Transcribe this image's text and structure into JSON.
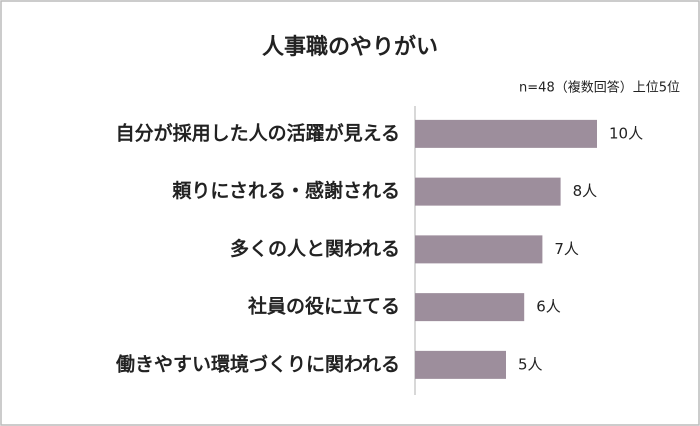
{
  "chart_data": {
    "type": "barh",
    "title": "人事職のやりがい",
    "subtitle": "n=48（複数回答）上位5位",
    "categories": [
      "自分が採用した人の活躍が見える",
      "頼りにされる・感謝される",
      "多くの人と関われる",
      "社員の役に立てる",
      "働きやすい環境づくりに関われる"
    ],
    "values": [
      10,
      8,
      7,
      6,
      5
    ],
    "value_labels": [
      "10人",
      "8人",
      "7人",
      "6人",
      "5人"
    ],
    "color": "#9d8e9c"
  }
}
